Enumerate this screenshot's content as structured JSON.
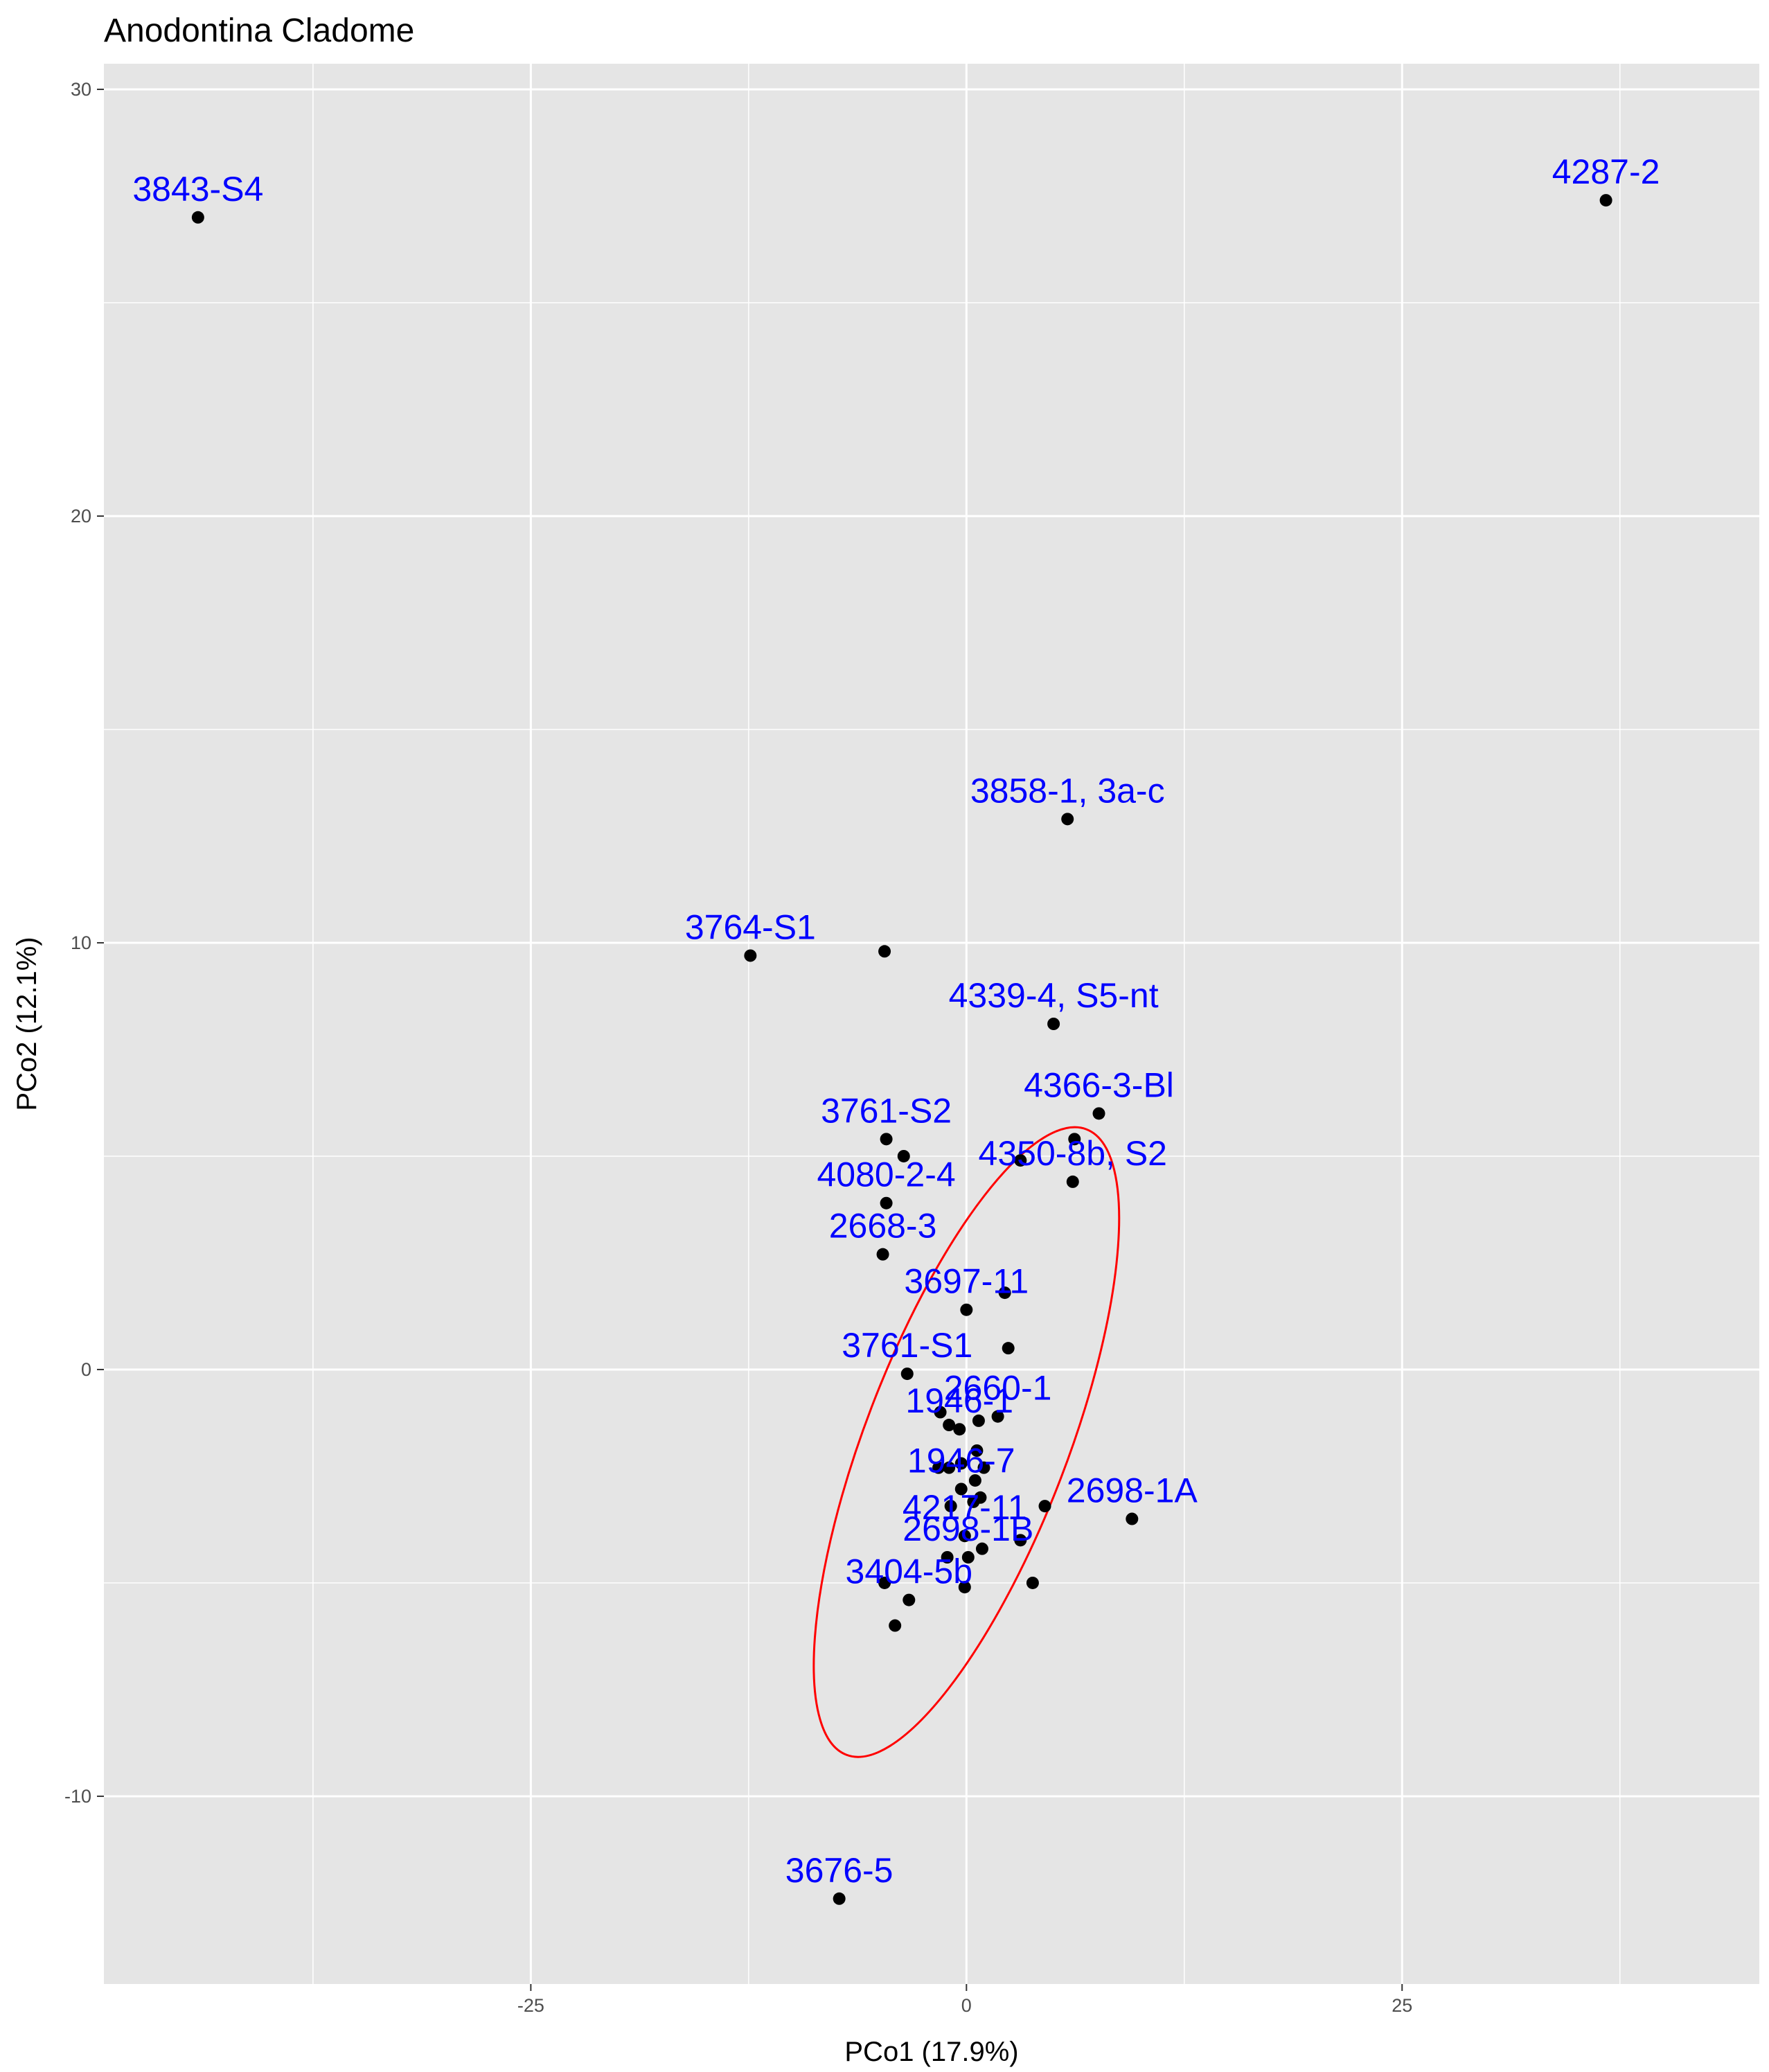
{
  "chart_data": {
    "type": "scatter",
    "title": "Anodontina Cladome",
    "xlabel": "PCo1 (17.9%)",
    "ylabel": "PCo2 (12.1%)",
    "xlim": [
      -49.5,
      45.5
    ],
    "ylim": [
      -14.4,
      30.6
    ],
    "x_ticks": [
      -25,
      0,
      25
    ],
    "x_tick_labels": [
      "-25",
      "0",
      "25"
    ],
    "y_ticks": [
      -10,
      0,
      10,
      20,
      30
    ],
    "y_tick_labels": [
      "-10",
      "0",
      "10",
      "20",
      "30"
    ],
    "grid": true,
    "colors": {
      "panel": "#e5e5e5",
      "grid": "#ffffff",
      "point": "#000000",
      "label": "#0000ff",
      "ellipse": "#ff0000"
    },
    "points": [
      {
        "x": -44.1,
        "y": 27.0,
        "label": "3843-S4"
      },
      {
        "x": 36.7,
        "y": 27.4,
        "label": "4287-2"
      },
      {
        "x": 5.8,
        "y": 12.9,
        "label": "3858-1, 3a-c"
      },
      {
        "x": -12.4,
        "y": 9.7,
        "label": "3764-S1"
      },
      {
        "x": -4.7,
        "y": 9.8,
        "label": ""
      },
      {
        "x": 5.0,
        "y": 8.1,
        "label": "4339-4, S5-nt"
      },
      {
        "x": 7.6,
        "y": 6.0,
        "label": "4366-3-Bl"
      },
      {
        "x": 6.2,
        "y": 5.4,
        "label": ""
      },
      {
        "x": -4.6,
        "y": 5.4,
        "label": "3761-S2"
      },
      {
        "x": -3.6,
        "y": 5.0,
        "label": ""
      },
      {
        "x": 3.1,
        "y": 4.9,
        "label": ""
      },
      {
        "x": 6.1,
        "y": 4.4,
        "label": "4350-8b, S2"
      },
      {
        "x": -4.6,
        "y": 3.9,
        "label": "4080-2-4"
      },
      {
        "x": -4.8,
        "y": 2.7,
        "label": "2668-3"
      },
      {
        "x": 2.2,
        "y": 1.8,
        "label": ""
      },
      {
        "x": 0.0,
        "y": 1.4,
        "label": "3697-11"
      },
      {
        "x": 2.4,
        "y": 0.5,
        "label": ""
      },
      {
        "x": -3.4,
        "y": -0.1,
        "label": "3761-S1"
      },
      {
        "x": -1.5,
        "y": -1.0,
        "label": ""
      },
      {
        "x": 1.8,
        "y": -1.1,
        "label": "2660-1"
      },
      {
        "x": 0.7,
        "y": -1.2,
        "label": ""
      },
      {
        "x": -1.0,
        "y": -1.3,
        "label": ""
      },
      {
        "x": -0.4,
        "y": -1.4,
        "label": "1946-1"
      },
      {
        "x": 0.6,
        "y": -1.9,
        "label": ""
      },
      {
        "x": -0.3,
        "y": -2.2,
        "label": ""
      },
      {
        "x": -1.6,
        "y": -2.3,
        "label": ""
      },
      {
        "x": -1.0,
        "y": -2.3,
        "label": ""
      },
      {
        "x": 1.0,
        "y": -2.3,
        "label": ""
      },
      {
        "x": 0.5,
        "y": -2.6,
        "label": ""
      },
      {
        "x": -0.3,
        "y": -2.8,
        "label": "1946-7"
      },
      {
        "x": 0.8,
        "y": -3.0,
        "label": ""
      },
      {
        "x": 0.4,
        "y": -3.1,
        "label": ""
      },
      {
        "x": -0.9,
        "y": -3.2,
        "label": ""
      },
      {
        "x": 4.5,
        "y": -3.2,
        "label": ""
      },
      {
        "x": 9.5,
        "y": -3.5,
        "label": "2698-1A"
      },
      {
        "x": -0.1,
        "y": -3.9,
        "label": "4217-11"
      },
      {
        "x": 3.1,
        "y": -4.0,
        "label": ""
      },
      {
        "x": 0.9,
        "y": -4.2,
        "label": ""
      },
      {
        "x": -1.1,
        "y": -4.4,
        "label": ""
      },
      {
        "x": 0.1,
        "y": -4.4,
        "label": "2698-1B"
      },
      {
        "x": 3.8,
        "y": -5.0,
        "label": ""
      },
      {
        "x": -4.7,
        "y": -5.0,
        "label": ""
      },
      {
        "x": -0.1,
        "y": -5.1,
        "label": ""
      },
      {
        "x": -3.3,
        "y": -5.4,
        "label": "3404-5b"
      },
      {
        "x": -4.1,
        "y": -6.0,
        "label": ""
      },
      {
        "x": -7.3,
        "y": -12.4,
        "label": "3676-5"
      }
    ],
    "ellipse": {
      "cx": 0.0,
      "cy": -1.7,
      "rx": 5.8,
      "ry": 7.85,
      "angle_deg": 21
    }
  }
}
